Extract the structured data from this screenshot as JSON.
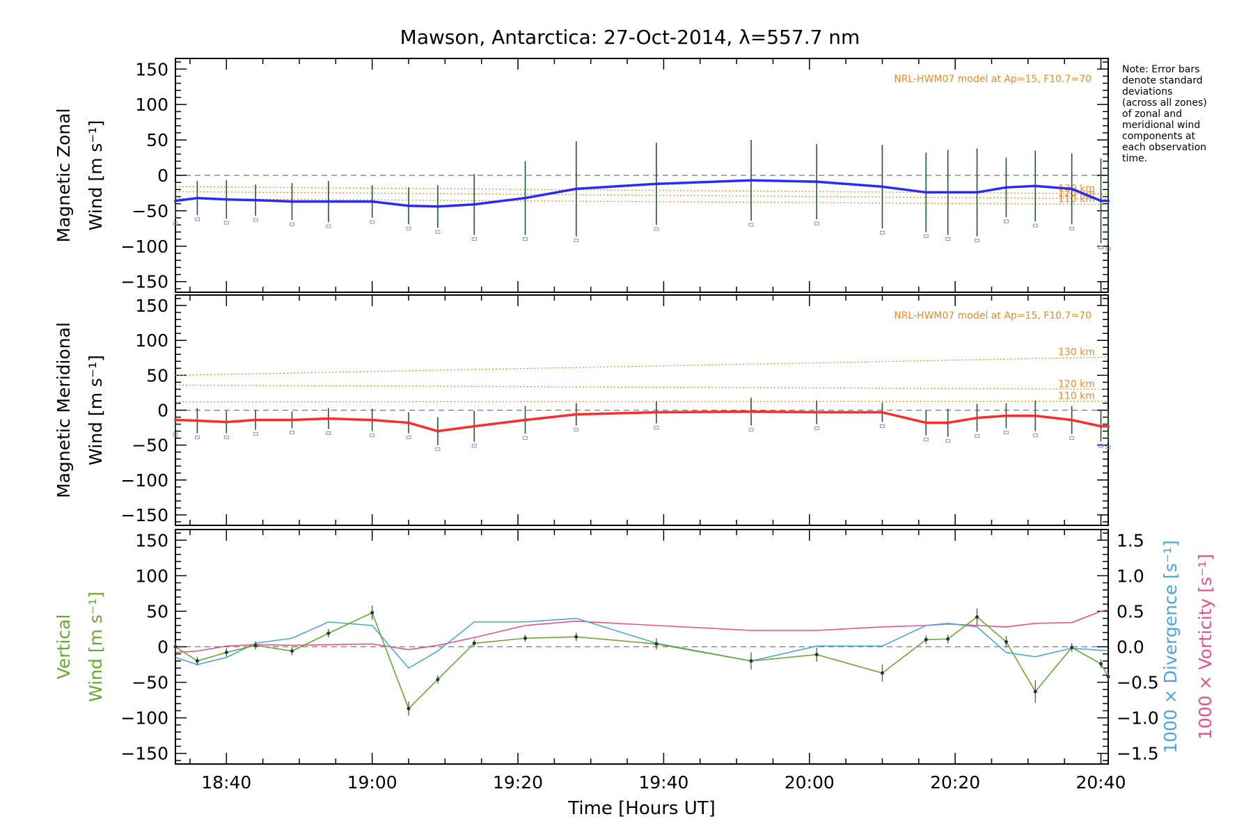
{
  "title": "Mawson, Antarctica: 27-Oct-2014, λ=557.7 nm",
  "note_lines": [
    "Note: Error bars",
    "denote standard",
    "deviations",
    "(across all zones)",
    "of zonal and",
    "meridional wind",
    "components at",
    "each observation",
    "time."
  ],
  "colors": {
    "zonal": "#2a2aff",
    "meridional": "#ff2a2a",
    "vertical": "#6aa832",
    "divergence": "#4aa7dc",
    "vorticity": "#ea4f88",
    "model": "#f08a24",
    "errorbar": "#1b5b2e",
    "samples": "#8c8cf0"
  },
  "chart_data": [
    {
      "type": "line",
      "name": "zonal",
      "ylabel_lines": [
        "Magnetic Zonal",
        "Wind [m s⁻¹]"
      ],
      "ylim": [
        -165,
        165
      ],
      "yticks": [
        150,
        100,
        50,
        0,
        -50,
        -100,
        -150
      ],
      "xlim_minutes": [
        1113,
        1241
      ],
      "model_label": "NRL-HWM07 model at Ap=15, F10.7=70",
      "model_lines": [
        {
          "label": "130 km",
          "start": -16,
          "end": -26
        },
        {
          "label": "120 km",
          "start": -23,
          "end": -33
        },
        {
          "label": "110 km",
          "start": -33,
          "end": -41
        }
      ],
      "x": [
        1113,
        1116,
        1120,
        1124,
        1129,
        1134,
        1140,
        1145,
        1149,
        1154,
        1161,
        1168,
        1179,
        1192,
        1201,
        1210,
        1216,
        1219,
        1223,
        1227,
        1231,
        1236,
        1240,
        1241
      ],
      "y": [
        -36,
        -32,
        -34,
        -35,
        -37,
        -37,
        -37,
        -43,
        -44,
        -41,
        -32,
        -19,
        -12,
        -7,
        -9,
        -16,
        -24,
        -24,
        -24,
        -17,
        -15,
        -19,
        -36,
        -36
      ],
      "yerr": [
        26,
        24,
        27,
        22,
        26,
        29,
        23,
        26,
        30,
        43,
        52,
        67,
        58,
        57,
        53,
        59,
        56,
        60,
        62,
        42,
        50,
        50,
        60,
        62
      ]
    },
    {
      "type": "line",
      "name": "meridional",
      "ylabel_lines": [
        "Magnetic Meridional",
        "Wind [m s⁻¹]"
      ],
      "ylim": [
        -165,
        165
      ],
      "yticks": [
        150,
        100,
        50,
        0,
        -50,
        -100,
        -150
      ],
      "model_label": "NRL-HWM07 model at Ap=15, F10.7=70",
      "model_lines": [
        {
          "label": "130 km",
          "start": 50,
          "end": 76
        },
        {
          "label": "120 km",
          "start": 36,
          "end": 30
        },
        {
          "label": "110 km",
          "start": 12,
          "end": 13
        }
      ],
      "x": [
        1113,
        1116,
        1120,
        1124,
        1129,
        1134,
        1140,
        1145,
        1149,
        1154,
        1161,
        1168,
        1179,
        1192,
        1201,
        1210,
        1216,
        1219,
        1223,
        1227,
        1231,
        1236,
        1240,
        1241
      ],
      "y": [
        -14,
        -15,
        -17,
        -14,
        -14,
        -12,
        -14,
        -18,
        -30,
        -23,
        -14,
        -6,
        -3,
        -2,
        -3,
        -3,
        -18,
        -18,
        -11,
        -8,
        -8,
        -14,
        -23,
        -23
      ],
      "yerr": [
        15,
        18,
        16,
        14,
        12,
        15,
        16,
        15,
        20,
        22,
        20,
        16,
        16,
        20,
        17,
        14,
        18,
        20,
        20,
        18,
        22,
        20,
        22,
        24
      ]
    },
    {
      "type": "line",
      "name": "vertical",
      "ylabel_lines": [
        "Vertical",
        "Wind [m s⁻¹]"
      ],
      "ylim": [
        -165,
        165
      ],
      "yticks": [
        150,
        100,
        50,
        0,
        -50,
        -100,
        -150
      ],
      "y2lim": [
        -1.65,
        1.65
      ],
      "y2ticks": [
        "1.5",
        "1.0",
        "0.5",
        "0.0",
        "−0.5",
        "−1.0",
        "−1.5"
      ],
      "y2label_lines": [
        "1000 × Divergence [s⁻¹]",
        "1000 × Vorticity [s⁻¹]"
      ],
      "xlabel": "Time [Hours UT]",
      "xtick_labels": [
        "18:40",
        "19:00",
        "19:20",
        "19:40",
        "20:00",
        "20:20",
        "20:40"
      ],
      "xtick_minutes": [
        1120,
        1140,
        1160,
        1180,
        1200,
        1220,
        1240
      ],
      "series": [
        {
          "name": "vertical",
          "axis": "left",
          "x": [
            1113,
            1116,
            1120,
            1124,
            1129,
            1134,
            1140,
            1145,
            1149,
            1154,
            1161,
            1168,
            1179,
            1192,
            1201,
            1210,
            1216,
            1219,
            1223,
            1227,
            1231,
            1236,
            1240,
            1241
          ],
          "y": [
            0,
            -20,
            -8,
            2,
            -6,
            19,
            48,
            -87,
            -46,
            5,
            12,
            14,
            4,
            -20,
            -11,
            -37,
            10,
            11,
            42,
            7,
            -63,
            -1,
            -24,
            -42
          ],
          "yerr": [
            6,
            6,
            6,
            6,
            6,
            6,
            10,
            10,
            6,
            5,
            5,
            6,
            8,
            12,
            10,
            12,
            6,
            6,
            12,
            8,
            16,
            6,
            6,
            6
          ]
        },
        {
          "name": "divergence",
          "axis": "right",
          "x": [
            1113,
            1116,
            1120,
            1124,
            1129,
            1134,
            1140,
            1145,
            1149,
            1154,
            1161,
            1168,
            1179,
            1192,
            1201,
            1210,
            1216,
            1219,
            1223,
            1227,
            1231,
            1236,
            1240,
            1241
          ],
          "y": [
            -0.15,
            -0.25,
            -0.15,
            0.05,
            0.12,
            0.35,
            0.3,
            -0.3,
            -0.06,
            0.35,
            0.35,
            0.4,
            0.05,
            -0.2,
            0.01,
            0.01,
            0.3,
            0.33,
            0.28,
            -0.08,
            -0.14,
            -0.02,
            -0.05,
            -0.05
          ]
        },
        {
          "name": "vorticity",
          "axis": "right",
          "x": [
            1113,
            1116,
            1120,
            1124,
            1129,
            1134,
            1140,
            1145,
            1149,
            1154,
            1161,
            1168,
            1179,
            1192,
            1201,
            1210,
            1216,
            1219,
            1223,
            1227,
            1231,
            1236,
            1240,
            1241
          ],
          "y": [
            -0.08,
            -0.06,
            0.01,
            0.03,
            0.02,
            0.03,
            0.04,
            -0.04,
            0.02,
            0.13,
            0.3,
            0.36,
            0.3,
            0.23,
            0.23,
            0.28,
            0.3,
            0.32,
            0.3,
            0.28,
            0.33,
            0.34,
            0.5,
            0.52
          ]
        }
      ]
    }
  ]
}
